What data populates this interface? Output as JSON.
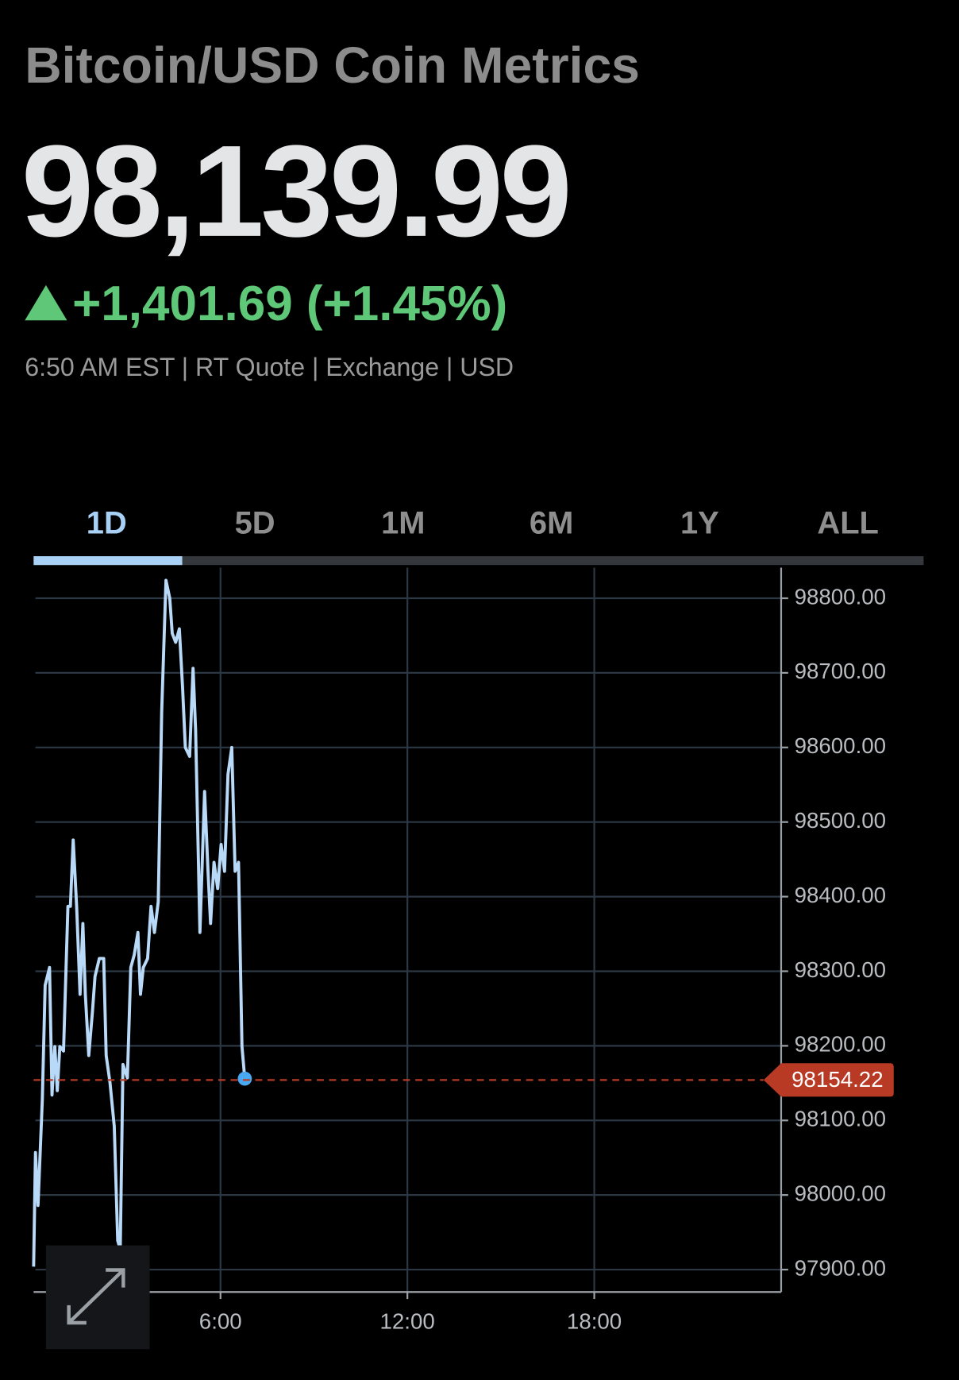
{
  "header": {
    "title": "Bitcoin/USD Coin Metrics",
    "price": "98,139.99",
    "change": "+1,401.69 (+1.45%)",
    "meta": "6:50 AM EST | RT Quote | Exchange | USD"
  },
  "tabs": [
    "1D",
    "5D",
    "1M",
    "6M",
    "1Y",
    "ALL"
  ],
  "chart_data": {
    "type": "line",
    "color": "#b9d9f8",
    "last_value": 98154.22,
    "last_color": "#b83a24",
    "x": [
      0,
      0.06,
      0.14,
      0.28,
      0.37,
      0.51,
      0.59,
      0.68,
      0.76,
      0.84,
      0.96,
      1.1,
      1.18,
      1.27,
      1.38,
      1.49,
      1.58,
      1.66,
      1.77,
      1.89,
      1.97,
      2.11,
      2.25,
      2.33,
      2.45,
      2.59,
      2.7,
      2.78,
      2.87,
      3.01,
      3.12,
      3.23,
      3.35,
      3.43,
      3.52,
      3.66,
      3.77,
      3.88,
      4.0,
      4.11,
      4.25,
      4.37,
      4.45,
      4.56,
      4.68,
      4.78,
      4.87,
      5.01,
      5.12,
      5.2,
      5.34,
      5.49,
      5.6,
      5.68,
      5.79,
      5.91,
      6.02,
      6.13,
      6.24,
      6.36,
      6.47,
      6.58,
      6.69,
      6.78
    ],
    "values": [
      97904,
      98057,
      97986,
      98128,
      98281,
      98305,
      98134,
      98199,
      98140,
      98199,
      98193,
      98387,
      98387,
      98476,
      98387,
      98269,
      98364,
      98269,
      98187,
      98246,
      98293,
      98317,
      98317,
      98187,
      98151,
      98092,
      97939,
      97927,
      98175,
      98157,
      98305,
      98322,
      98352,
      98269,
      98305,
      98317,
      98387,
      98352,
      98393,
      98647,
      98824,
      98800,
      98753,
      98741,
      98759,
      98682,
      98600,
      98588,
      98706,
      98623,
      98352,
      98541,
      98434,
      98364,
      98446,
      98411,
      98470,
      98434,
      98564,
      98600,
      98434,
      98446,
      98199,
      98156
    ],
    "xlim": [
      0,
      24
    ],
    "xticks": [
      {
        "value": 6,
        "label": "6:00"
      },
      {
        "value": 12,
        "label": "12:00"
      },
      {
        "value": 18,
        "label": "18:00"
      }
    ],
    "ylim": [
      97870,
      98841
    ],
    "yticks": [
      {
        "value": 97900,
        "label": "97900.00"
      },
      {
        "value": 98000,
        "label": "98000.00"
      },
      {
        "value": 98100,
        "label": "98100.00"
      },
      {
        "value": 98200,
        "label": "98200.00"
      },
      {
        "value": 98300,
        "label": "98300.00"
      },
      {
        "value": 98400,
        "label": "98400.00"
      },
      {
        "value": 98500,
        "label": "98500.00"
      },
      {
        "value": 98600,
        "label": "98600.00"
      },
      {
        "value": 98700,
        "label": "98700.00"
      },
      {
        "value": 98800,
        "label": "98800.00"
      }
    ],
    "grid": true
  }
}
